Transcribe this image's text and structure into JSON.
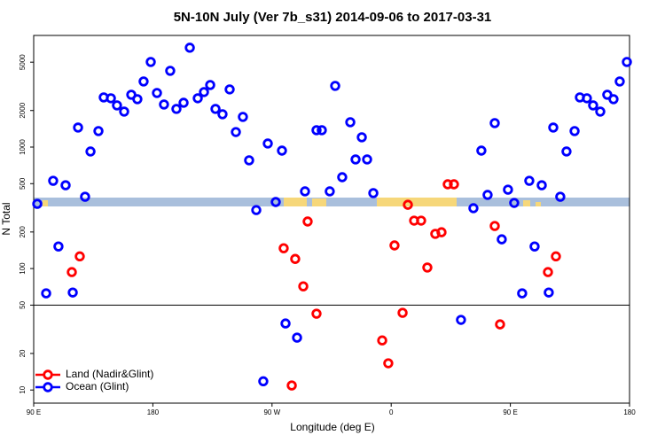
{
  "chart_data": {
    "type": "scatter",
    "title": "5N-10N July (Ver 7b_s31)   2014-09-06 to 2017-03-31",
    "x_label": "Longitude (deg E)",
    "y_label": "N Total",
    "log_y": true,
    "xlim": [
      90,
      540
    ],
    "ylim": [
      7.8,
      8300
    ],
    "xticks": [
      {
        "value": 90,
        "label": "90 E"
      },
      {
        "value": 180,
        "label": "180"
      },
      {
        "value": 270,
        "label": "90 W"
      },
      {
        "value": 360,
        "label": "0"
      },
      {
        "value": 450,
        "label": "90 E"
      },
      {
        "value": 540,
        "label": "180"
      }
    ],
    "yticks": [
      10,
      20,
      50,
      100,
      200,
      500,
      1000,
      2000,
      5000
    ],
    "reference_line": 50,
    "legend": "bottom-left",
    "series": [
      {
        "name": "Land (Nadir&Glint)",
        "color": "#ff0000",
        "x": [
          118.8,
          124.8,
          278.8,
          287.5,
          293.6,
          296.9,
          303.6,
          284.9,
          353.2,
          357.8,
          362.5,
          368.6,
          372.6,
          377.3,
          382.6,
          387.3,
          393.3,
          398.0,
          402.7,
          407.4,
          438.2,
          442.2,
          478.4,
          484.4
        ],
        "values": [
          93.5,
          126,
          147,
          120,
          71.4,
          244,
          42.5,
          10.9,
          25.6,
          16.6,
          155,
          43.2,
          335,
          248,
          248,
          102,
          193,
          199,
          494,
          494,
          224,
          34.7,
          93.5,
          126
        ]
      },
      {
        "name": "Ocean (Glint)",
        "color": "#0000ff",
        "x": [
          92.7,
          99.4,
          104.7,
          108.7,
          114.1,
          119.5,
          123.5,
          128.8,
          132.9,
          138.9,
          142.9,
          148.3,
          152.9,
          158.3,
          163.7,
          168.3,
          173.0,
          178.4,
          183.1,
          188.4,
          193.1,
          197.8,
          203.2,
          207.9,
          213.9,
          218.6,
          223.3,
          227.3,
          232.6,
          238.0,
          242.7,
          248.0,
          252.7,
          258.1,
          263.4,
          266.8,
          272.8,
          277.5,
          280.2,
          288.9,
          294.9,
          303.6,
          307.6,
          313.6,
          317.7,
          323.0,
          329.1,
          333.1,
          337.8,
          341.8,
          346.5,
          412.7,
          422.1,
          428.1,
          432.8,
          438.2,
          443.5,
          448.2,
          452.9,
          458.9,
          464.3,
          468.3,
          473.7,
          479.0,
          482.4,
          487.7,
          492.4,
          498.5,
          502.5,
          507.8,
          512.5,
          517.9,
          523.2,
          527.9,
          532.6,
          538.0
        ],
        "values": [
          341,
          62.5,
          528,
          152,
          485,
          63.5,
          1448,
          390,
          920,
          1355,
          2565,
          2523,
          2205,
          1960,
          2697,
          2480,
          3470,
          5020,
          2790,
          2243,
          4246,
          2061,
          2317,
          6577,
          2523,
          2838,
          3243,
          2061,
          1864,
          2985,
          1330,
          1772,
          778,
          303,
          11.8,
          1070,
          353,
          935,
          35.3,
          27,
          432,
          1377,
          1377,
          432,
          3190,
          565,
          1602,
          791,
          1204,
          791,
          418,
          37.8,
          314,
          935,
          404,
          1575,
          174,
          446,
          347,
          62.5,
          528,
          152,
          485,
          63.5,
          1448,
          390,
          920,
          1355,
          2565,
          2523,
          2205,
          1960,
          2697,
          2480,
          3470,
          5020
        ]
      }
    ]
  }
}
